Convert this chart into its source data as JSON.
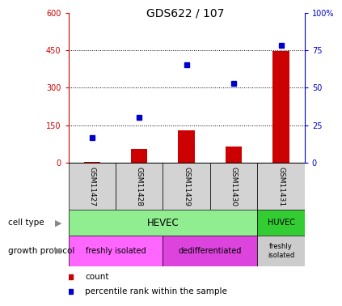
{
  "title": "GDS622 / 107",
  "samples": [
    "GSM11427",
    "GSM11428",
    "GSM11429",
    "GSM11430",
    "GSM11431"
  ],
  "counts": [
    5,
    55,
    130,
    65,
    445
  ],
  "percentile_ranks_pct": [
    17,
    30,
    65,
    53,
    78
  ],
  "left_yticks": [
    0,
    150,
    300,
    450,
    600
  ],
  "left_ytick_labels": [
    "0",
    "150",
    "300",
    "450",
    "600"
  ],
  "right_ytick_labels": [
    "0",
    "25",
    "50",
    "75",
    "100%"
  ],
  "left_axis_color": "#cc0000",
  "right_axis_color": "#0000cc",
  "dotted_lines": [
    150,
    300,
    450
  ],
  "bar_color": "#cc0000",
  "dot_color": "#0000cc",
  "hevec_color": "#90ee90",
  "huvec_color": "#33cc33",
  "freshly_color": "#ff66ff",
  "dediff_color": "#dd44dd",
  "freshly2_color": "#cccccc",
  "arrow_color": "#888888"
}
